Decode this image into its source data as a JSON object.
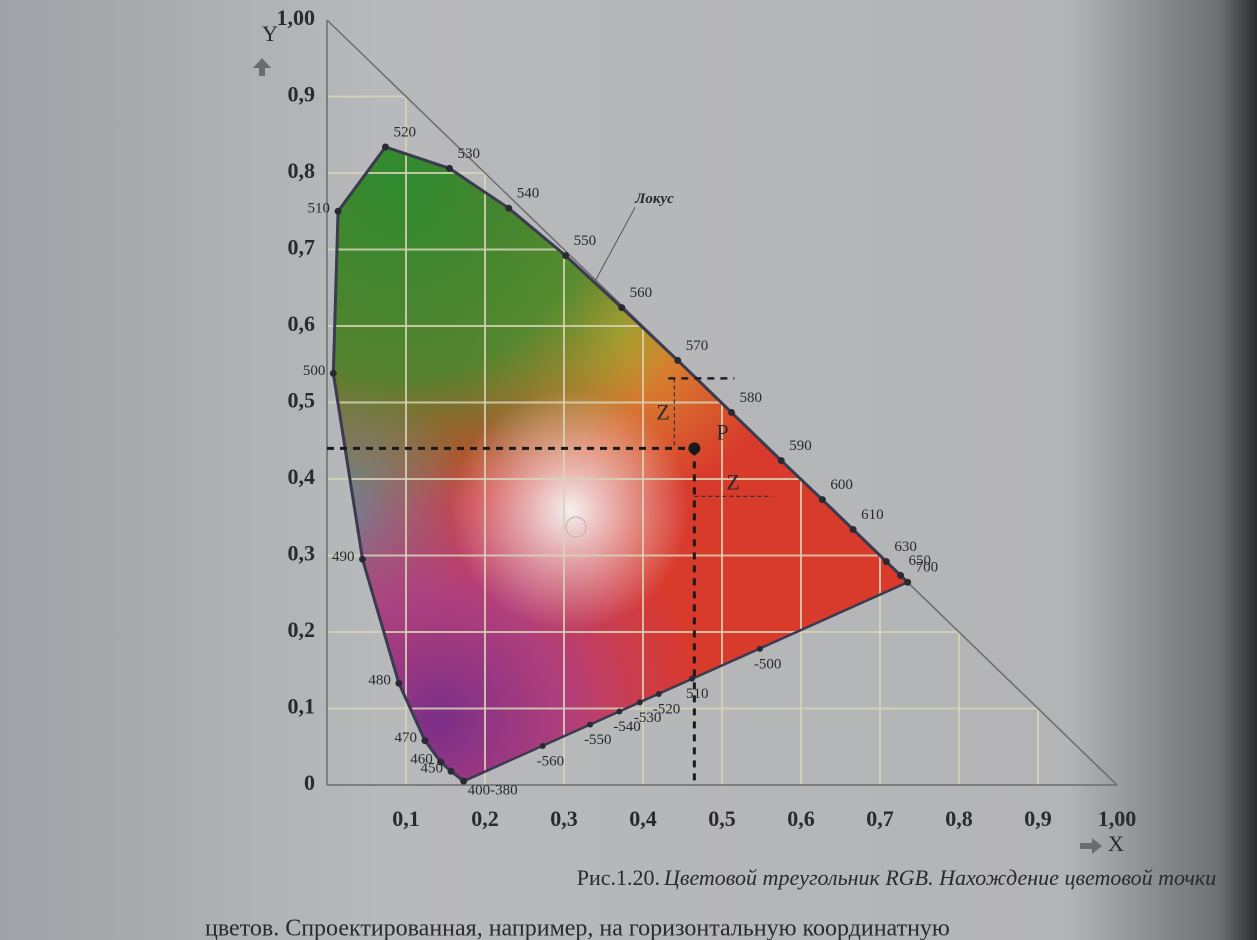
{
  "chart_data": {
    "type": "chromaticity",
    "x_label": "X",
    "y_label": "Y",
    "xlim": [
      0,
      1
    ],
    "ylim": [
      0,
      1
    ],
    "xticks": [
      {
        "value": 0.1,
        "label": "0,1"
      },
      {
        "value": 0.2,
        "label": "0,2"
      },
      {
        "value": 0.3,
        "label": "0,3"
      },
      {
        "value": 0.4,
        "label": "0,4"
      },
      {
        "value": 0.5,
        "label": "0,5"
      },
      {
        "value": 0.6,
        "label": "0,6"
      },
      {
        "value": 0.7,
        "label": "0,7"
      },
      {
        "value": 0.8,
        "label": "0,8"
      },
      {
        "value": 0.9,
        "label": "0,9"
      },
      {
        "value": 1,
        "label": "1,00"
      }
    ],
    "yticks": [
      0,
      {
        "value": 0.1,
        "label": "0,1"
      },
      {
        "value": 0.2,
        "label": "0,2"
      },
      {
        "value": 0.3,
        "label": "0,3"
      },
      {
        "value": 0.4,
        "label": "0,4"
      },
      {
        "value": 0.5,
        "label": "0,5"
      },
      {
        "value": 0.6,
        "label": "0,6"
      },
      {
        "value": 0.7,
        "label": "0,7"
      },
      {
        "value": 0.8,
        "label": "0,8"
      },
      {
        "value": 0.9,
        "label": "0,9"
      },
      {
        "value": 1,
        "label": "1,00"
      }
    ],
    "grid": true,
    "locus_label": "Локус",
    "spectral_locus": {
      "labels": [
        "400-380",
        "450",
        "460",
        "470",
        "480",
        "490",
        "500",
        "510",
        "520",
        "530",
        "540",
        "550",
        "560",
        "570",
        "580",
        "590",
        "600",
        "610",
        "630",
        "650",
        "700"
      ],
      "x": [
        0.173,
        0.157,
        0.144,
        0.124,
        0.091,
        0.045,
        0.008,
        0.014,
        0.074,
        0.155,
        0.23,
        0.302,
        0.373,
        0.444,
        0.512,
        0.575,
        0.627,
        0.666,
        0.708,
        0.726,
        0.735
      ],
      "y": [
        0.005,
        0.018,
        0.03,
        0.058,
        0.133,
        0.295,
        0.538,
        0.75,
        0.834,
        0.806,
        0.754,
        0.692,
        0.624,
        0.555,
        0.487,
        0.424,
        0.373,
        0.334,
        0.292,
        0.274,
        0.265
      ]
    },
    "purple_line": {
      "labels": [
        "-560",
        "-550",
        "-540",
        "-530",
        "-520",
        "510",
        "-500"
      ],
      "x": [
        0.273,
        0.333,
        0.37,
        0.396,
        0.42,
        0.462,
        0.548
      ],
      "y": [
        0.051,
        0.079,
        0.096,
        0.108,
        0.119,
        0.139,
        0.178
      ]
    },
    "point": {
      "label": "P",
      "x": 0.465,
      "y": 0.44
    },
    "distance_labels": [
      "Z",
      "Z"
    ]
  },
  "caption": {
    "number": "Рис.1.20.",
    "text": "Цветовой треугольник RGB. Нахождение цветовой точки"
  },
  "body_text": "цветов. Спроектированная, например, на горизонтальную координатную"
}
